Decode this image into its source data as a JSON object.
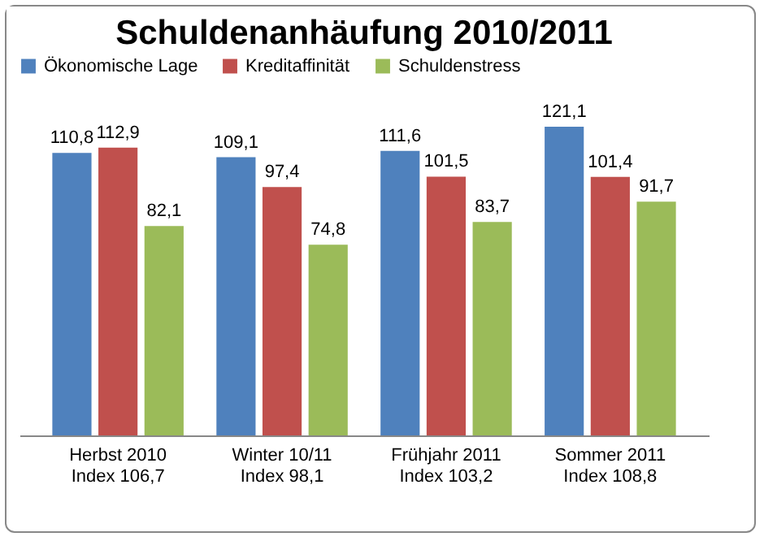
{
  "chart_data": {
    "type": "bar",
    "title": "Schuldenanhäufung 2010/2011",
    "categories": [
      "Herbst 2010\nIndex 106,7",
      "Winter 10/11\nIndex 98,1",
      "Frühjahr 2011\nIndex 103,2",
      "Sommer 2011\nIndex 108,8"
    ],
    "series": [
      {
        "name": "Ökonomische Lage",
        "color": "#4f81bd",
        "values": [
          110.8,
          109.1,
          111.6,
          121.1
        ],
        "value_labels": [
          "110,8",
          "109,1",
          "111,6",
          "121,1"
        ]
      },
      {
        "name": "Kreditaffinität",
        "color": "#c0504d",
        "values": [
          112.9,
          97.4,
          101.5,
          101.4
        ],
        "value_labels": [
          "112,9",
          "97,4",
          "101,5",
          "101,4"
        ]
      },
      {
        "name": "Schuldenstress",
        "color": "#9bbb59",
        "values": [
          82.1,
          74.8,
          83.7,
          91.7
        ],
        "value_labels": [
          "82,1",
          "74,8",
          "83,7",
          "91,7"
        ]
      }
    ],
    "legend": "top"
  }
}
